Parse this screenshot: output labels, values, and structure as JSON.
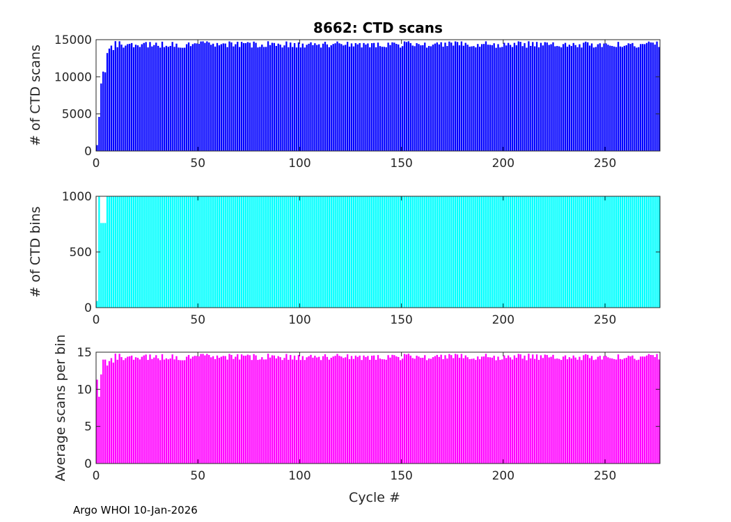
{
  "chart_data": [
    {
      "type": "bar",
      "title": "8662: CTD scans",
      "xlabel": "",
      "ylabel": "# of CTD scans",
      "color": "#0000ff",
      "xlim": [
        0,
        277
      ],
      "ylim": [
        0,
        15000
      ],
      "xticks": [
        0,
        50,
        100,
        150,
        200,
        250
      ],
      "yticks": [
        0,
        5000,
        10000,
        15000
      ],
      "early_values": [
        800,
        4600,
        9100,
        10700,
        10600,
        13200,
        13800,
        14200,
        13600,
        14800
      ],
      "typical_range": [
        13900,
        14800
      ],
      "missing_cycles": [],
      "n_cycles": 277
    },
    {
      "type": "bar",
      "title": "",
      "xlabel": "",
      "ylabel": "# of CTD bins",
      "color": "#00ffff",
      "xlim": [
        0,
        277
      ],
      "ylim": [
        0,
        1000
      ],
      "xticks": [
        0,
        50,
        100,
        150,
        200,
        250
      ],
      "yticks": [
        0,
        500,
        1000
      ],
      "early_values": [
        60,
        1000,
        760,
        760,
        760,
        1000,
        1000,
        1000,
        1000,
        1000
      ],
      "typical_range": [
        1000,
        1000
      ],
      "missing_cycles": [],
      "n_cycles": 277
    },
    {
      "type": "bar",
      "title": "",
      "xlabel": "Cycle #",
      "ylabel": "Average scans per bin",
      "color": "#ff00ff",
      "xlim": [
        0,
        277
      ],
      "ylim": [
        0,
        15
      ],
      "xticks": [
        0,
        50,
        100,
        150,
        200,
        250
      ],
      "yticks": [
        0,
        5,
        10,
        15
      ],
      "early_values": [
        11.3,
        9.0,
        12.0,
        14.0,
        14.0,
        13.2,
        13.8,
        14.2,
        13.6,
        14.8
      ],
      "typical_range": [
        13.9,
        14.8
      ],
      "missing_cycles": [],
      "n_cycles": 277
    }
  ],
  "footer": "Argo WHOI 10-Jan-2026"
}
